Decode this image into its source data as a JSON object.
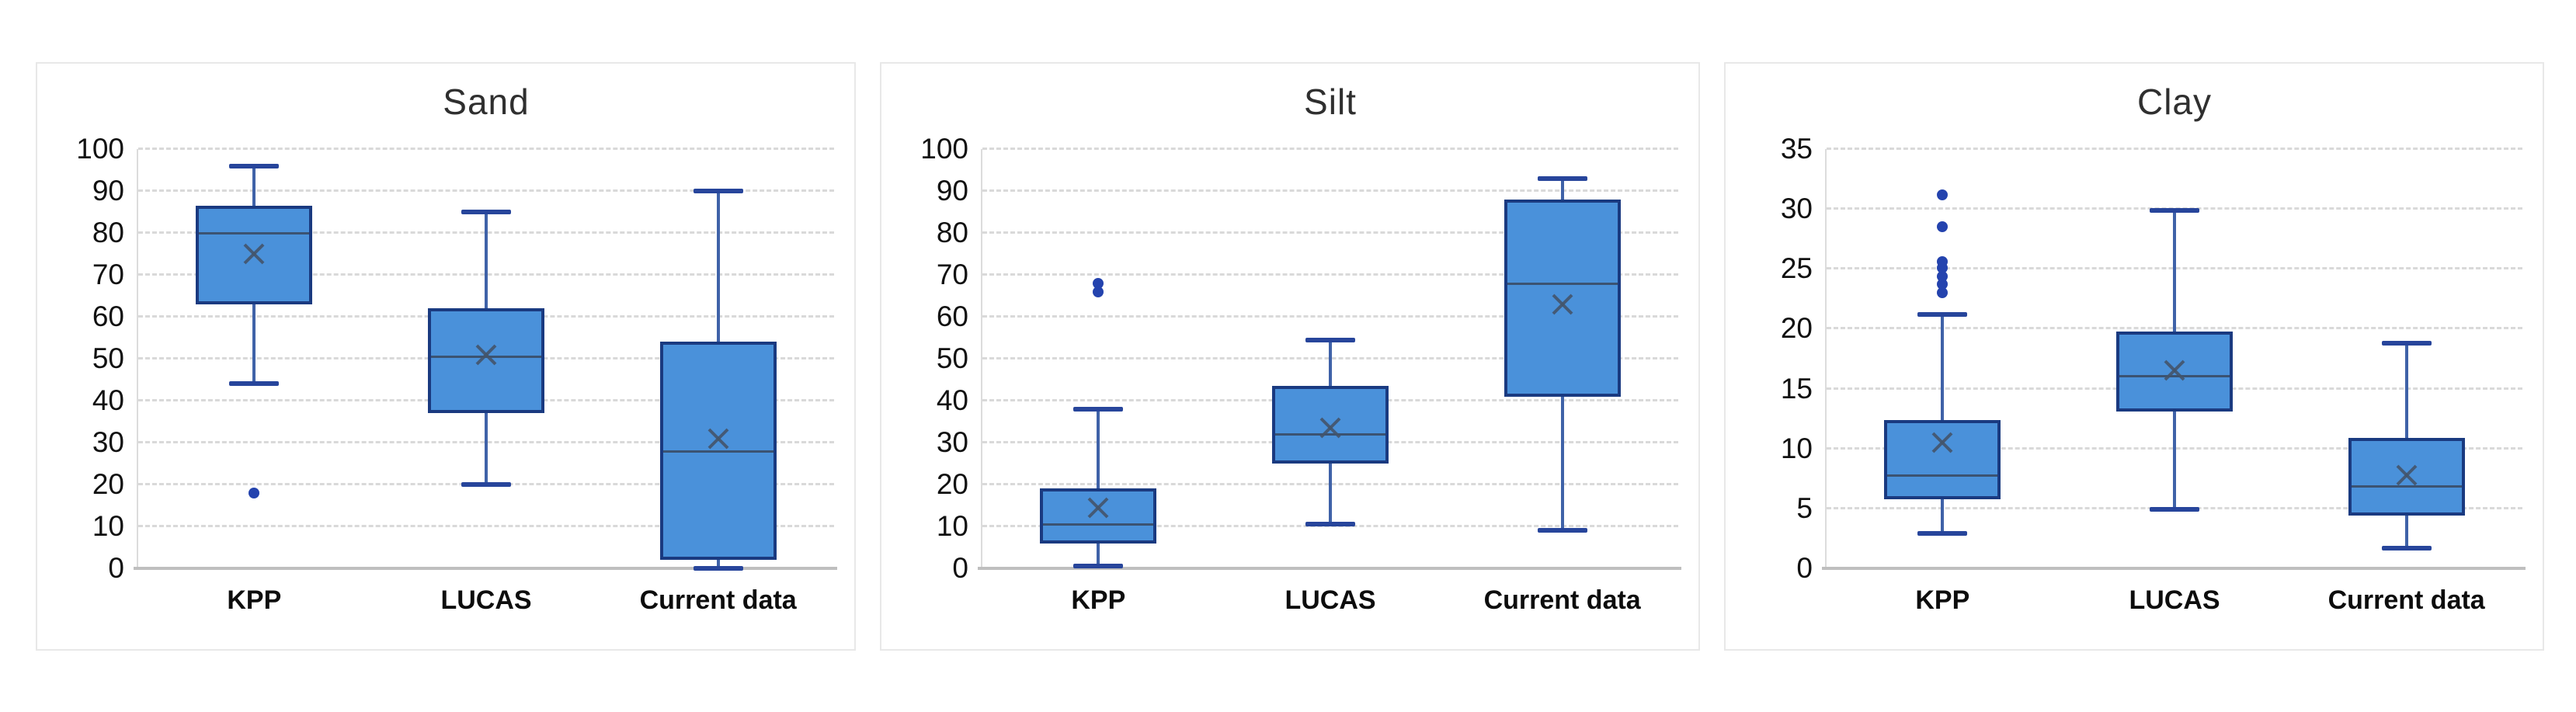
{
  "figure": {
    "panels": [
      "Sand",
      "Silt",
      "Clay"
    ]
  },
  "style": {
    "box_fill": "#4A91DA",
    "box_border": "#1A3A80",
    "median_color": "#3B5372",
    "mean_color": "#44546A",
    "whisker_stem_color": "#3F62A8",
    "whisker_cap_color": "#27459B",
    "outlier_color": "#2443AE",
    "gridline_color": "#D9D9D9",
    "axis_color": "#BFBFBF",
    "text_color": "#111111"
  },
  "chart_data": [
    {
      "type": "box",
      "title": "Sand",
      "categories": [
        "KPP",
        "LUCAS",
        "Current data"
      ],
      "ylim": [
        0,
        100
      ],
      "y_ticks": [
        100,
        90,
        80,
        70,
        60,
        50,
        40,
        30,
        20,
        10,
        0
      ],
      "grid": "horizontal-dashed",
      "legend": "none",
      "series": [
        {
          "category": "KPP",
          "min": 44,
          "q1": 63,
          "median": 80,
          "q3": 86.5,
          "max": 96,
          "mean": 75,
          "outliers": [
            18
          ]
        },
        {
          "category": "LUCAS",
          "min": 20,
          "q1": 37,
          "median": 50.5,
          "q3": 62,
          "max": 85,
          "mean": 51,
          "outliers": []
        },
        {
          "category": "Current data",
          "min": 0,
          "q1": 2,
          "median": 28,
          "q3": 54,
          "max": 90,
          "mean": 31,
          "outliers": []
        }
      ]
    },
    {
      "type": "box",
      "title": "Silt",
      "categories": [
        "KPP",
        "LUCAS",
        "Current data"
      ],
      "ylim": [
        0,
        100
      ],
      "y_ticks": [
        100,
        90,
        80,
        70,
        60,
        50,
        40,
        30,
        20,
        10,
        0
      ],
      "grid": "horizontal-dashed",
      "legend": "none",
      "series": [
        {
          "category": "KPP",
          "min": 0.5,
          "q1": 6,
          "median": 10.5,
          "q3": 19,
          "max": 38,
          "mean": 14.5,
          "outliers": [
            66,
            68
          ]
        },
        {
          "category": "LUCAS",
          "min": 10.5,
          "q1": 25,
          "median": 32,
          "q3": 43.5,
          "max": 54.5,
          "mean": 33.5,
          "outliers": []
        },
        {
          "category": "Current data",
          "min": 9,
          "q1": 41,
          "median": 68,
          "q3": 88,
          "max": 93,
          "mean": 63,
          "outliers": []
        }
      ]
    },
    {
      "type": "box",
      "title": "Clay",
      "categories": [
        "KPP",
        "LUCAS",
        "Current data"
      ],
      "ylim": [
        0,
        35
      ],
      "y_ticks": [
        35,
        30,
        25,
        20,
        15,
        10,
        5,
        0
      ],
      "grid": "horizontal-dashed",
      "legend": "none",
      "series": [
        {
          "category": "KPP",
          "min": 2.9,
          "q1": 5.8,
          "median": 7.8,
          "q3": 12.4,
          "max": 21.2,
          "mean": 10.5,
          "outliers": [
            23.0,
            23.7,
            24.4,
            25.1,
            25.6,
            28.5,
            31.2
          ]
        },
        {
          "category": "LUCAS",
          "min": 4.9,
          "q1": 13.1,
          "median": 16.1,
          "q3": 19.8,
          "max": 29.9,
          "mean": 16.5,
          "outliers": []
        },
        {
          "category": "Current data",
          "min": 1.7,
          "q1": 4.4,
          "median": 6.9,
          "q3": 10.9,
          "max": 18.8,
          "mean": 7.8,
          "outliers": []
        }
      ]
    }
  ]
}
